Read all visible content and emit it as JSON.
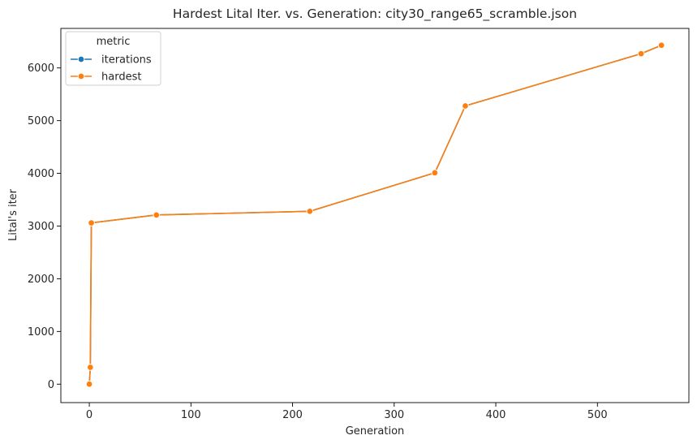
{
  "chart_data": {
    "type": "line",
    "title": "Hardest Lital Iter. vs. Generation: city30_range65_scramble.json",
    "xlabel": "Generation",
    "ylabel": "Lital's iter",
    "xlim": [
      -28,
      590
    ],
    "ylim": [
      -350,
      6750
    ],
    "xticks": [
      0,
      100,
      200,
      300,
      400,
      500
    ],
    "yticks": [
      0,
      1000,
      2000,
      3000,
      4000,
      5000,
      6000
    ],
    "grid": false,
    "legend": {
      "title": "metric",
      "position": "top-left"
    },
    "x": [
      0,
      1,
      2,
      66,
      217,
      340,
      370,
      543,
      563
    ],
    "series": [
      {
        "name": "iterations",
        "color": "#1f77b4",
        "marker": "circle",
        "values": [
          0,
          320,
          3060,
          3210,
          3280,
          4010,
          5280,
          6270,
          6430
        ]
      },
      {
        "name": "hardest",
        "color": "#ff7f0e",
        "marker": "circle",
        "values": [
          0,
          320,
          3060,
          3210,
          3280,
          4010,
          5280,
          6270,
          6430
        ]
      }
    ]
  }
}
